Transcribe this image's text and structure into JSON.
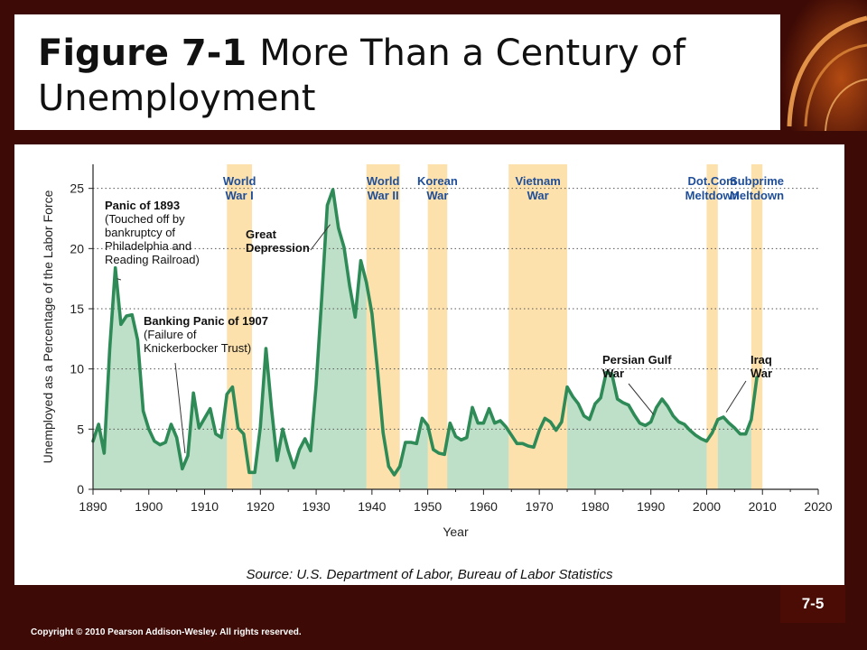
{
  "slide": {
    "title_bold": "Figure 7-1",
    "title_rest": "More Than a Century of Unemployment",
    "source": "Source: U.S. Department of Labor, Bureau of Labor Statistics",
    "copyright": "Copyright © 2010 Pearson Addison-Wesley. All rights reserved.",
    "page_number": "7-5",
    "colors": {
      "background": "#3d0a05",
      "line": "#2e8b57",
      "fill": "#bfe0c8",
      "bands": "#fde1ad",
      "axis_label": "#1f4e99"
    }
  },
  "chart_data": {
    "type": "area",
    "title": "",
    "xlabel": "Year",
    "ylabel": "Unemployed as a Percentage of the Labor Force",
    "xlim": [
      1890,
      2020
    ],
    "ylim": [
      0,
      27
    ],
    "x_ticks": [
      1890,
      1900,
      1910,
      1920,
      1930,
      1940,
      1950,
      1960,
      1970,
      1980,
      1990,
      2000,
      2010,
      2020
    ],
    "y_ticks": [
      0,
      5,
      10,
      15,
      20,
      25
    ],
    "grid": "dotted horizontal lines at 5, 10, 15, 20, 25",
    "series": [
      {
        "x": [
          1890,
          1891,
          1892,
          1893,
          1894,
          1895,
          1896,
          1897,
          1898,
          1899,
          1900,
          1901,
          1902,
          1903,
          1904,
          1905,
          1906,
          1907,
          1908,
          1909,
          1910,
          1911,
          1912,
          1913,
          1914,
          1915,
          1916,
          1917,
          1918,
          1919,
          1920,
          1921,
          1922,
          1923,
          1924,
          1925,
          1926,
          1927,
          1928,
          1929,
          1930,
          1931,
          1932,
          1933,
          1934,
          1935,
          1936,
          1937,
          1938,
          1939,
          1940,
          1941,
          1942,
          1943,
          1944,
          1945,
          1946,
          1947,
          1948,
          1949,
          1950,
          1951,
          1952,
          1953,
          1954,
          1955,
          1956,
          1957,
          1958,
          1959,
          1960,
          1961,
          1962,
          1963,
          1964,
          1965,
          1966,
          1967,
          1968,
          1969,
          1970,
          1971,
          1972,
          1973,
          1974,
          1975,
          1976,
          1977,
          1978,
          1979,
          1980,
          1981,
          1982,
          1983,
          1984,
          1985,
          1986,
          1987,
          1988,
          1989,
          1990,
          1991,
          1992,
          1993,
          1994,
          1995,
          1996,
          1997,
          1998,
          1999,
          2000,
          2001,
          2002,
          2003,
          2004,
          2005,
          2006,
          2007,
          2008,
          2009
        ],
        "values": [
          4.0,
          5.4,
          3.0,
          11.7,
          18.4,
          13.7,
          14.4,
          14.5,
          12.4,
          6.5,
          5.0,
          4.0,
          3.7,
          3.9,
          5.4,
          4.3,
          1.7,
          2.8,
          8.0,
          5.1,
          5.9,
          6.7,
          4.6,
          4.3,
          7.9,
          8.5,
          5.1,
          4.6,
          1.4,
          1.4,
          5.2,
          11.7,
          6.7,
          2.4,
          5.0,
          3.2,
          1.8,
          3.3,
          4.2,
          3.2,
          8.7,
          15.9,
          23.6,
          24.9,
          21.7,
          20.1,
          16.9,
          14.3,
          19.0,
          17.2,
          14.6,
          9.9,
          4.7,
          1.9,
          1.2,
          1.9,
          3.9,
          3.9,
          3.8,
          5.9,
          5.3,
          3.3,
          3.0,
          2.9,
          5.5,
          4.4,
          4.1,
          4.3,
          6.8,
          5.5,
          5.5,
          6.7,
          5.5,
          5.7,
          5.2,
          4.5,
          3.8,
          3.8,
          3.6,
          3.5,
          4.9,
          5.9,
          5.6,
          4.9,
          5.6,
          8.5,
          7.7,
          7.1,
          6.1,
          5.8,
          7.1,
          7.6,
          9.7,
          9.6,
          7.5,
          7.2,
          7.0,
          6.2,
          5.5,
          5.3,
          5.6,
          6.8,
          7.5,
          6.9,
          6.1,
          5.6,
          5.4,
          4.9,
          4.5,
          4.2,
          4.0,
          4.7,
          5.8,
          6.0,
          5.5,
          5.1,
          4.6,
          4.6,
          5.8,
          9.3
        ]
      }
    ],
    "bands": [
      {
        "label": [
          "World",
          "War I"
        ],
        "from": 1914,
        "to": 1918.5
      },
      {
        "label": [
          "World",
          "War II"
        ],
        "from": 1939,
        "to": 1945
      },
      {
        "label": [
          "Korean",
          "War"
        ],
        "from": 1950,
        "to": 1953.5
      },
      {
        "label": [
          "Vietnam",
          "War"
        ],
        "from": 1964.5,
        "to": 1975
      },
      {
        "label": [
          "Dot.Com",
          "Meltdown"
        ],
        "from": 2000,
        "to": 2002
      },
      {
        "label": [
          "Subprime",
          "Meltdown"
        ],
        "from": 2008,
        "to": 2010
      }
    ],
    "annotations": [
      {
        "bold": "Panic of 1893",
        "lines": [
          "(Touched off by",
          "bankruptcy of",
          "Philadelphia and",
          "Reading Railroad)"
        ]
      },
      {
        "bold": "Banking Panic of 1907",
        "lines": [
          "(Failure of",
          "Knickerbocker Trust)"
        ]
      },
      {
        "bold": "Great",
        "lines": [
          "Depression"
        ]
      },
      {
        "bold": "Persian Gulf",
        "lines": [
          "War"
        ]
      },
      {
        "bold": "Iraq",
        "lines": [
          "War"
        ]
      }
    ]
  }
}
